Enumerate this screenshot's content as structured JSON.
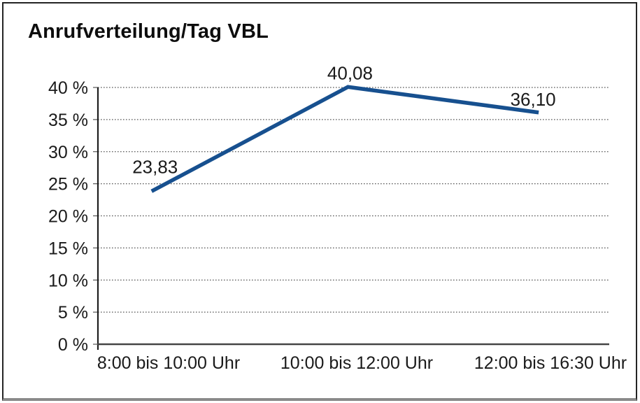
{
  "window": {
    "background": "#ffffff",
    "frame_border_color": "#242424",
    "frame_bottom_edge_color": "#8a8a8a"
  },
  "chart_data": {
    "type": "line",
    "title": "Anrufverteilung/Tag VBL",
    "categories": [
      "8:00 bis 10:00 Uhr",
      "10:00 bis 12:00 Uhr",
      "12:00 bis 16:30 Uhr"
    ],
    "series": [
      {
        "name": "Anrufverteilung/Tag VBL",
        "values": [
          23.83,
          40.08,
          36.1
        ]
      }
    ],
    "point_labels": [
      "23,83",
      "40,08",
      "36,10"
    ],
    "y_ticks": [
      "0 %",
      "5 %",
      "10 %",
      "15 %",
      "20 %",
      "25 %",
      "30 %",
      "35 %",
      "40 %"
    ],
    "ylabel": "",
    "xlabel": "",
    "ylim": [
      0,
      40
    ],
    "y_step": 5,
    "grid": "horizontal-dotted",
    "legend": "none",
    "line_color": "#17508f"
  }
}
